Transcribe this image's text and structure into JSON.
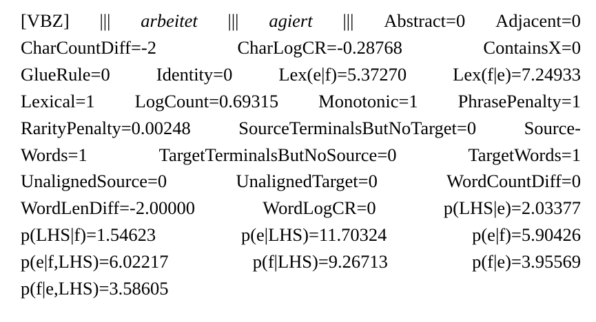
{
  "lines": [
    [
      "[VBZ]",
      "|||",
      "arbeitet",
      "|||",
      "agiert",
      "|||",
      "Abstract=0",
      "Adjacent=0"
    ],
    [
      "CharCountDiff=-2",
      "CharLogCR=-0.28768",
      "ContainsX=0"
    ],
    [
      "GlueRule=0",
      "Identity=0",
      "Lex(e|f)=5.37270",
      "Lex(f|e)=7.24933"
    ],
    [
      "Lexical=1",
      "LogCount=0.69315",
      "Monotonic=1",
      "PhrasePenalty=1"
    ],
    [
      "RarityPenalty=0.00248",
      "SourceTerminalsButNoTarget=0",
      "Source-"
    ],
    [
      "Words=1",
      "TargetTerminalsButNoSource=0",
      "TargetWords=1"
    ],
    [
      "UnalignedSource=0",
      "UnalignedTarget=0",
      "WordCountDiff=0"
    ],
    [
      "WordLenDiff=-2.00000",
      "WordLogCR=0",
      "p(LHS|e)=2.03377"
    ],
    [
      "p(LHS|f)=1.54623",
      "p(e|LHS)=11.70324",
      "p(e|f)=5.90426"
    ],
    [
      "p(e|f,LHS)=6.02217",
      "p(f|LHS)=9.26713",
      "p(f|e)=3.95569"
    ],
    [
      "p(f|e,LHS)=3.58605"
    ]
  ]
}
